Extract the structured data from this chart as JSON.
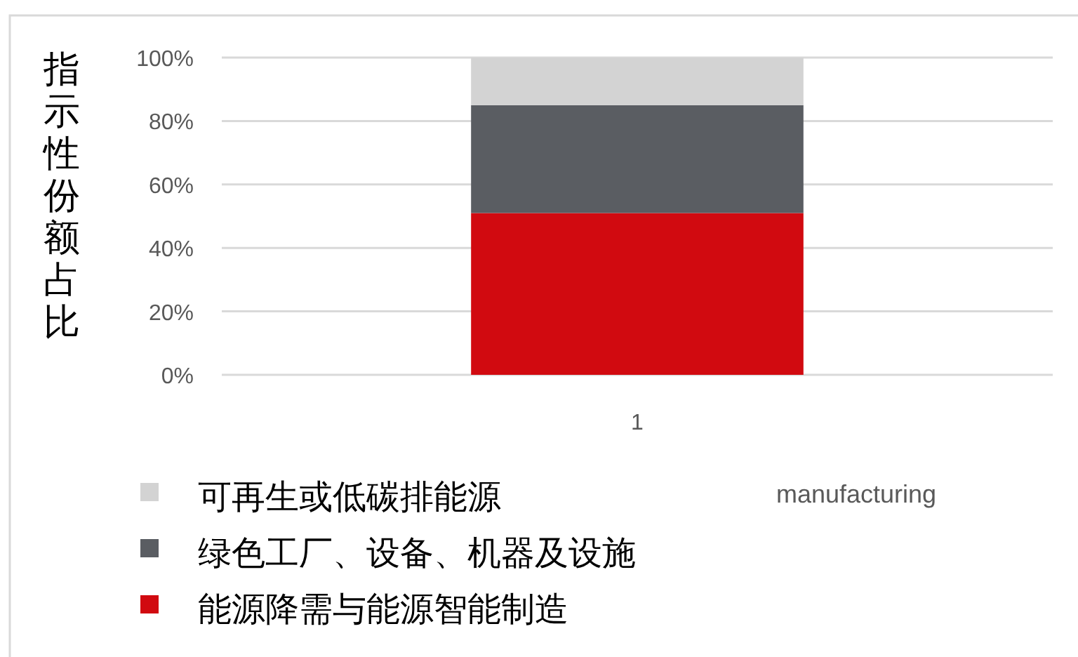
{
  "chart_data": {
    "type": "bar",
    "stacked": true,
    "ylabel": "指示性份额占比",
    "categories": [
      "1"
    ],
    "series": [
      {
        "name": "能源降需与能源智能制造",
        "color": "#d10a10",
        "values": [
          51
        ]
      },
      {
        "name": "绿色工厂、设备、机器及设施",
        "color": "#5a5d62",
        "values": [
          34
        ]
      },
      {
        "name": "可再生或低碳排能源",
        "color": "#d3d3d3",
        "values": [
          15
        ]
      }
    ],
    "ylim": [
      0,
      100
    ],
    "yticks": [
      {
        "value": 0,
        "label": "0%"
      },
      {
        "value": 20,
        "label": "20%"
      },
      {
        "value": 40,
        "label": "40%"
      },
      {
        "value": 60,
        "label": "60%"
      },
      {
        "value": 80,
        "label": "80%"
      },
      {
        "value": 100,
        "label": "100%"
      }
    ],
    "grid": "y",
    "legend": "bottom",
    "annotations": [
      "manufacturing"
    ]
  }
}
